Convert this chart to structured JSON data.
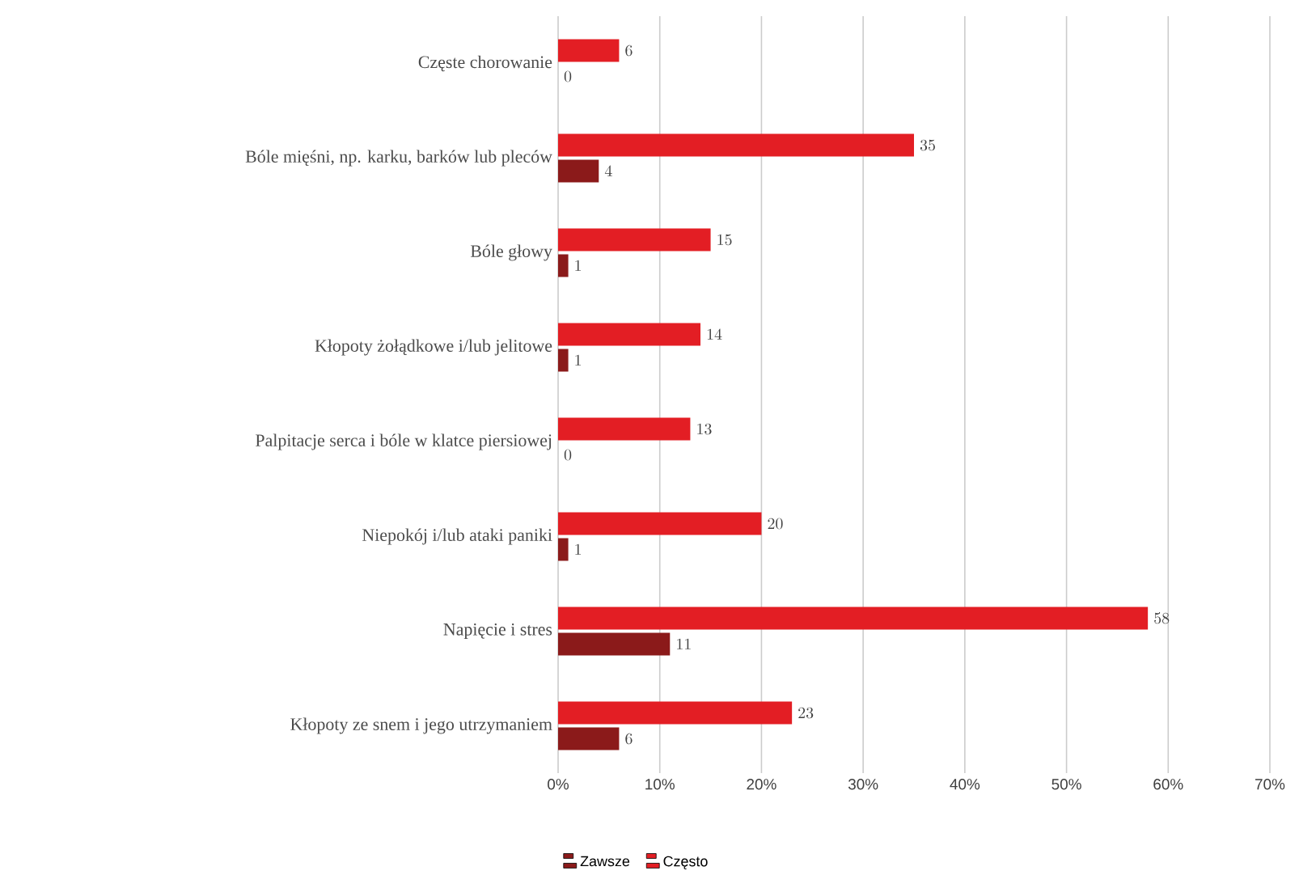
{
  "chart_data": {
    "type": "bar",
    "orientation": "horizontal",
    "categories": [
      "Częste chorowanie",
      "Bóle mięśni, np. karku, barków lub pleców",
      "Bóle głowy",
      "Kłopoty żołądkowe i/lub jelitowe",
      "Palpitacje serca i bóle w klatce piersiowej",
      "Niepokój i/lub ataki paniki",
      "Napięcie i stres",
      "Kłopoty ze snem i jego utrzymaniem"
    ],
    "series": [
      {
        "name": "Zawsze",
        "color": "#8b1a1a",
        "values": [
          0,
          4,
          1,
          1,
          0,
          1,
          11,
          6
        ]
      },
      {
        "name": "Często",
        "color": "#e31e24",
        "values": [
          6,
          35,
          15,
          14,
          13,
          20,
          58,
          23
        ]
      }
    ],
    "xlim": [
      0,
      70
    ],
    "xticks": [
      {
        "value": 0,
        "label": "0%"
      },
      {
        "value": 10,
        "label": "10%"
      },
      {
        "value": 20,
        "label": "20%"
      },
      {
        "value": 30,
        "label": "30%"
      },
      {
        "value": 40,
        "label": "40%"
      },
      {
        "value": 50,
        "label": "50%"
      },
      {
        "value": 60,
        "label": "60%"
      },
      {
        "value": 70,
        "label": "70%"
      }
    ],
    "grid": "x",
    "legend": "bottom",
    "data_labels": true
  }
}
